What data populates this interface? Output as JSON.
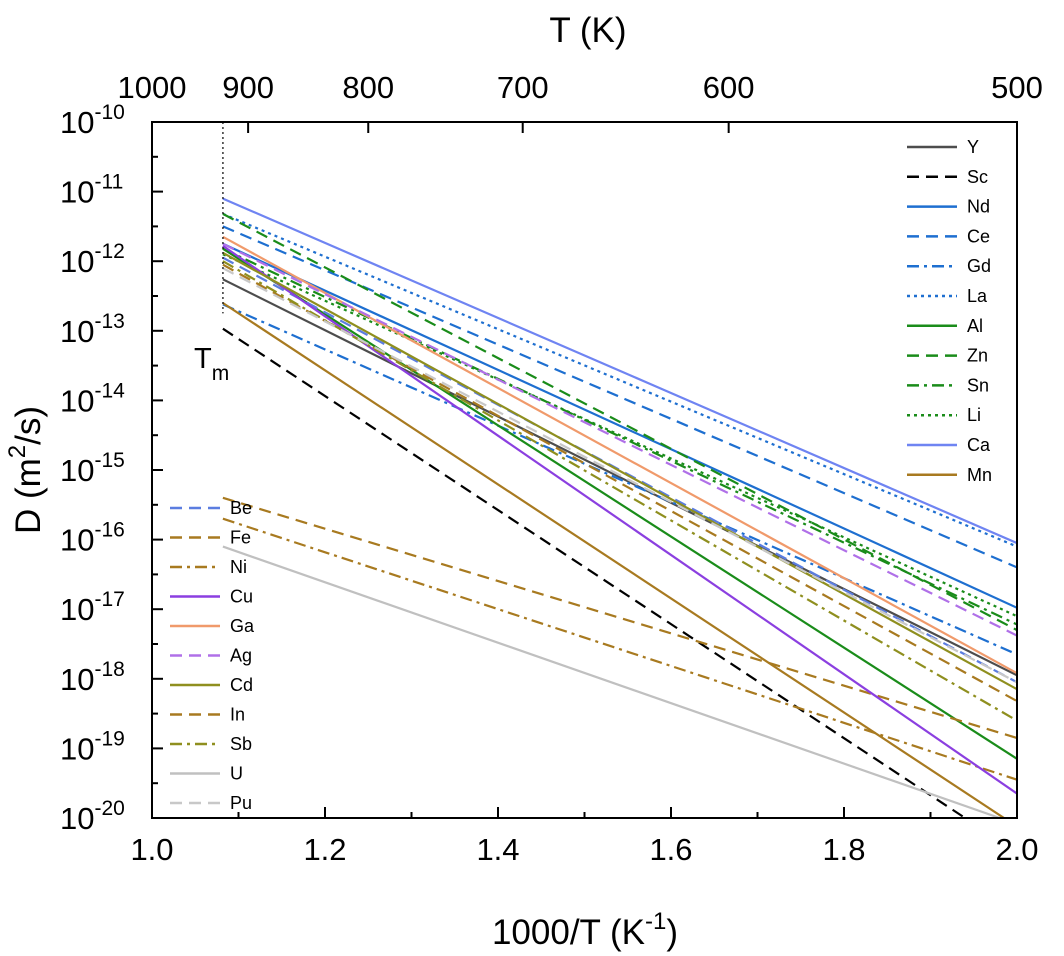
{
  "chart_data": {
    "type": "line",
    "title": "",
    "xlabel": "1000/T (K",
    "xlabel_sup": "-1",
    "xlabel_end": ")",
    "ylabel": "D (m",
    "ylabel_sup": "2",
    "ylabel_end": "/s)",
    "top_axis_label": "T (K)",
    "xlim": [
      1.0,
      2.0
    ],
    "ylim_log10": [
      -20,
      -10
    ],
    "yscale": "log",
    "x_ticks": [
      1.0,
      1.2,
      1.4,
      1.6,
      1.8,
      2.0
    ],
    "x_tick_labels": [
      "1.0",
      "1.2",
      "1.4",
      "1.6",
      "1.8",
      "2.0"
    ],
    "y_ticks_log10": [
      -20,
      -19,
      -18,
      -17,
      -16,
      -15,
      -14,
      -13,
      -12,
      -11,
      -10
    ],
    "y_tick_base": "10",
    "y_tick_exponents": [
      "-20",
      "-19",
      "-18",
      "-17",
      "-16",
      "-15",
      "-14",
      "-13",
      "-12",
      "-11",
      "-10"
    ],
    "top_ticks_K": [
      1000,
      900,
      800,
      700,
      600,
      500
    ],
    "top_tick_labels": [
      "1000",
      "900",
      "800",
      "700",
      "600",
      "500"
    ],
    "melting_point": {
      "x": 1.082,
      "label": "T",
      "label_sub": "m"
    },
    "series": [
      {
        "name": "Y",
        "color": "#4d4d4d",
        "dash": "solid",
        "x": [
          1.082,
          2.0
        ],
        "log10D": [
          -12.26,
          -17.95
        ]
      },
      {
        "name": "Sc",
        "color": "#000000",
        "dash": "dash",
        "x": [
          1.082,
          1.94
        ],
        "log10D": [
          -12.97,
          -20.0
        ]
      },
      {
        "name": "Nd",
        "color": "#1e6fd0",
        "dash": "solid",
        "x": [
          1.082,
          2.0
        ],
        "log10D": [
          -11.75,
          -16.98
        ]
      },
      {
        "name": "Ce",
        "color": "#1e6fd0",
        "dash": "dash",
        "x": [
          1.082,
          2.0
        ],
        "log10D": [
          -11.5,
          -16.4
        ]
      },
      {
        "name": "Gd",
        "color": "#1e6fd0",
        "dash": "dashdot",
        "x": [
          1.082,
          2.0
        ],
        "log10D": [
          -12.62,
          -17.65
        ]
      },
      {
        "name": "La",
        "color": "#1e6fd0",
        "dash": "dot",
        "x": [
          1.082,
          2.0
        ],
        "log10D": [
          -11.32,
          -16.1
        ]
      },
      {
        "name": "Al",
        "color": "#1a8c1a",
        "dash": "solid",
        "x": [
          1.082,
          2.0
        ],
        "log10D": [
          -11.82,
          -19.15
        ]
      },
      {
        "name": "Zn",
        "color": "#1a8c1a",
        "dash": "dash",
        "x": [
          1.082,
          2.0
        ],
        "log10D": [
          -11.32,
          -17.3
        ]
      },
      {
        "name": "Sn",
        "color": "#1a8c1a",
        "dash": "dashdot",
        "x": [
          1.082,
          2.0
        ],
        "log10D": [
          -11.82,
          -17.22
        ]
      },
      {
        "name": "Li",
        "color": "#1a8c1a",
        "dash": "dot",
        "x": [
          1.082,
          2.0
        ],
        "log10D": [
          -11.9,
          -17.1
        ]
      },
      {
        "name": "Ca",
        "color": "#6f84f2",
        "dash": "solid",
        "x": [
          1.082,
          2.0
        ],
        "log10D": [
          -11.1,
          -16.05
        ]
      },
      {
        "name": "Mn",
        "color": "#a87a20",
        "dash": "solid",
        "x": [
          1.082,
          1.985
        ],
        "log10D": [
          -12.6,
          -20.0
        ]
      },
      {
        "name": "Be",
        "color": "#5b7de0",
        "dash": "dash",
        "x": [
          1.082,
          2.0
        ],
        "log10D": [
          -11.95,
          -18.05
        ]
      },
      {
        "name": "Fe",
        "color": "#a87a20",
        "dash": "dash",
        "x": [
          1.082,
          2.0
        ],
        "log10D": [
          -15.4,
          -18.85
        ]
      },
      {
        "name": "Ni",
        "color": "#a87a20",
        "dash": "dashdot",
        "x": [
          1.082,
          2.0
        ],
        "log10D": [
          -15.7,
          -19.45
        ]
      },
      {
        "name": "Cu",
        "color": "#8b3fe0",
        "dash": "solid",
        "x": [
          1.082,
          2.0
        ],
        "log10D": [
          -11.78,
          -19.65
        ]
      },
      {
        "name": "Ga",
        "color": "#f09a6b",
        "dash": "solid",
        "x": [
          1.082,
          2.0
        ],
        "log10D": [
          -11.65,
          -17.92
        ]
      },
      {
        "name": "Ag",
        "color": "#b070e8",
        "dash": "dash",
        "x": [
          1.082,
          2.0
        ],
        "log10D": [
          -11.75,
          -17.38
        ]
      },
      {
        "name": "Cd",
        "color": "#8f8f1f",
        "dash": "solid",
        "x": [
          1.082,
          2.0
        ],
        "log10D": [
          -11.88,
          -18.15
        ]
      },
      {
        "name": "In",
        "color": "#a87a20",
        "dash": "dash",
        "x": [
          1.082,
          2.0
        ],
        "log10D": [
          -12.05,
          -18.32
        ]
      },
      {
        "name": "Sb",
        "color": "#8f8f1f",
        "dash": "dashdot",
        "x": [
          1.082,
          2.0
        ],
        "log10D": [
          -12.0,
          -18.6
        ]
      },
      {
        "name": "U",
        "color": "#c0c0c0",
        "dash": "solid",
        "x": [
          1.082,
          1.98
        ],
        "log10D": [
          -16.1,
          -20.0
        ]
      },
      {
        "name": "Pu",
        "color": "#c8c8c8",
        "dash": "dash",
        "x": [
          1.082,
          2.0
        ],
        "log10D": [
          -12.1,
          -18.05
        ]
      }
    ],
    "legend_right": [
      "Y",
      "Sc",
      "Nd",
      "Ce",
      "Gd",
      "La",
      "Al",
      "Zn",
      "Sn",
      "Li",
      "Ca",
      "Mn"
    ],
    "legend_left": [
      "Be",
      "Fe",
      "Ni",
      "Cu",
      "Ga",
      "Ag",
      "Cd",
      "In",
      "Sb",
      "U",
      "Pu"
    ],
    "legend_placement": [
      "top-right",
      "bottom-left"
    ]
  }
}
